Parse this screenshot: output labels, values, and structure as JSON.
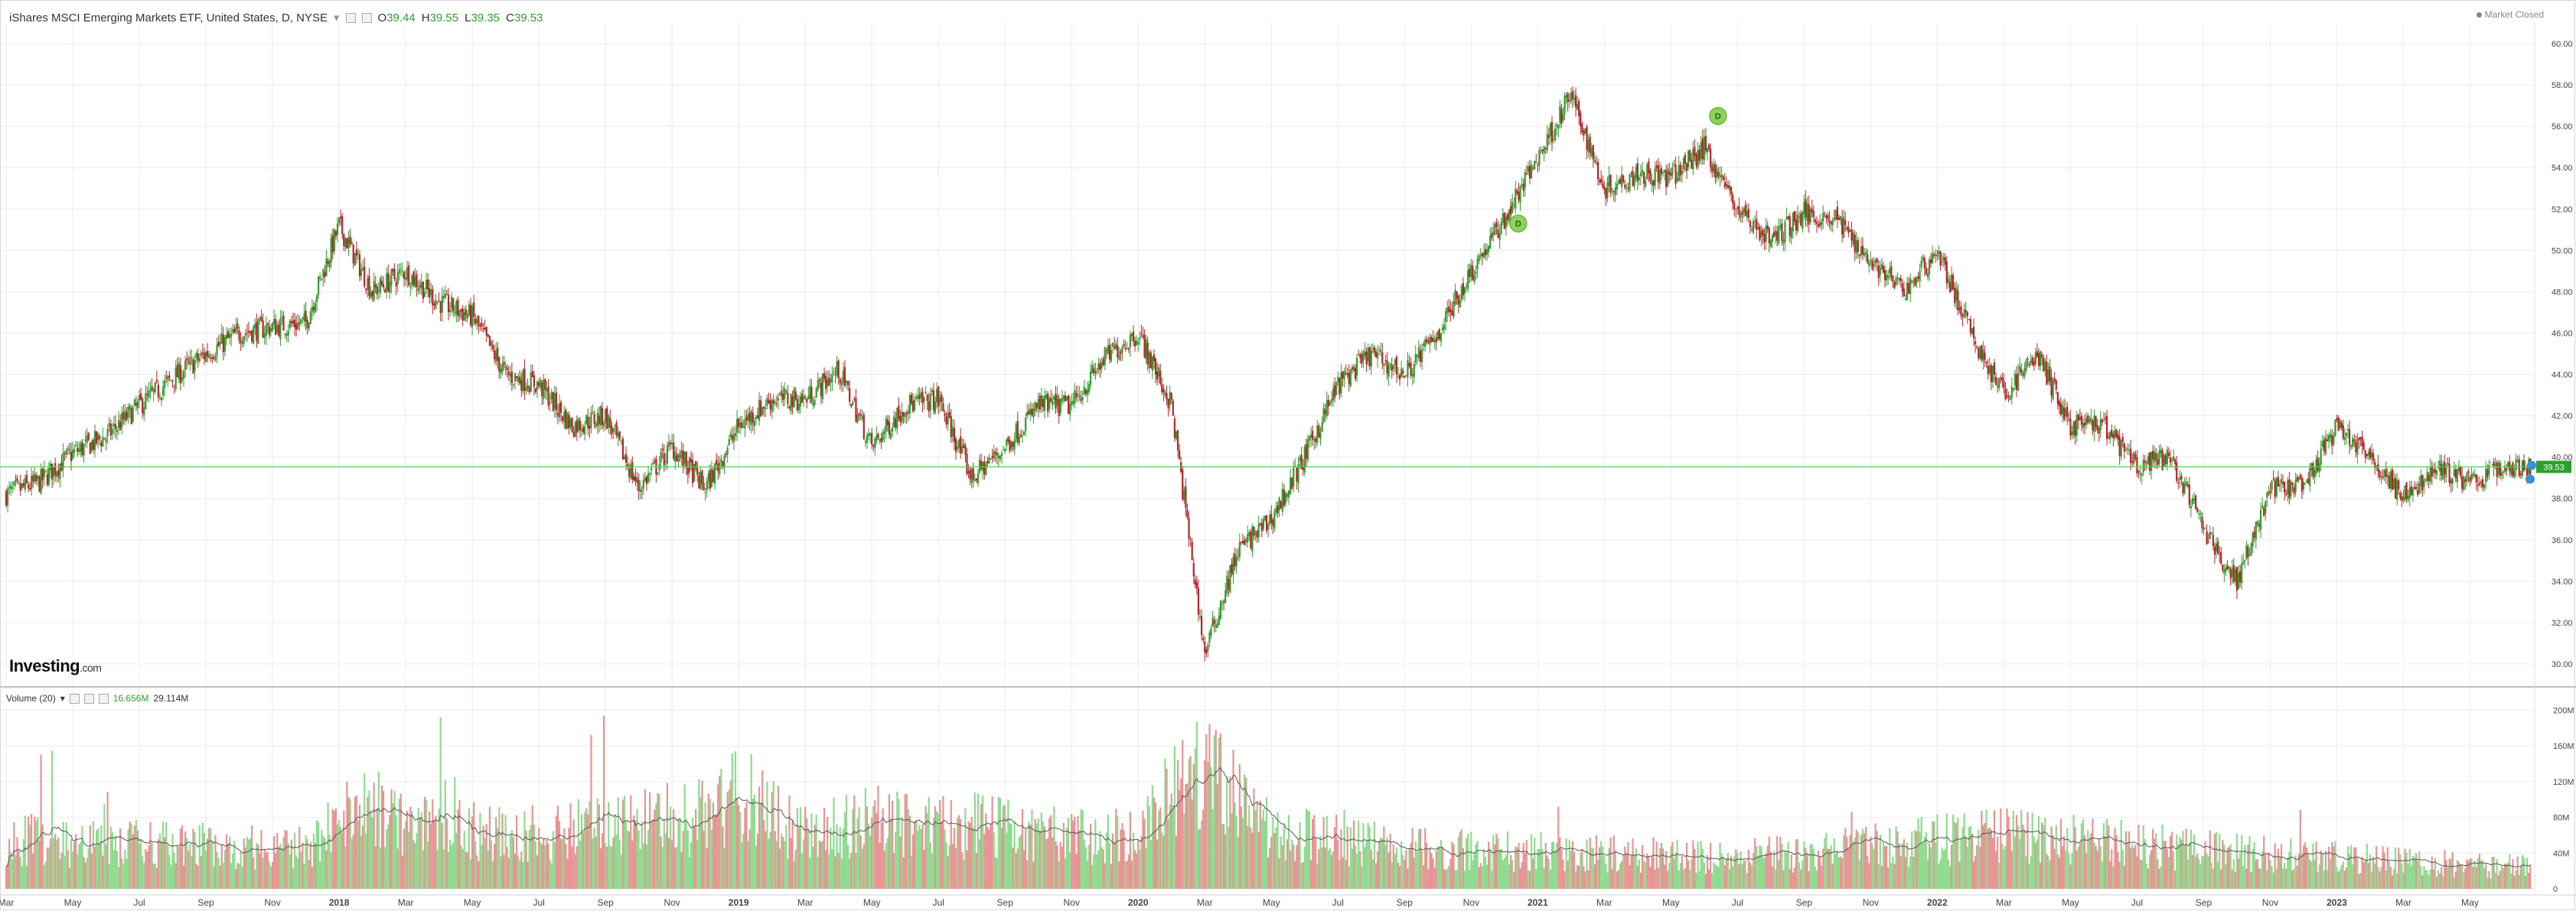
{
  "header": {
    "title": "iShares MSCI Emerging Markets ETF, United States, D, NYSE",
    "dropdown": "▾",
    "open_label": "O",
    "open": "39.44",
    "high_label": "H",
    "high": "39.55",
    "low_label": "L",
    "low": "39.35",
    "close_label": "C",
    "close": "39.53"
  },
  "status": {
    "market_closed": "Market Closed"
  },
  "logo": {
    "main": "Investing",
    "suffix": ".com"
  },
  "volume_header": {
    "label": "Volume (20)",
    "dropdown": "▾",
    "value": "16.656M",
    "ma_value": "29.114M"
  },
  "colors": {
    "up": "#2e9e2e",
    "down": "#b5242a",
    "vol_up": "#8fdb8f",
    "vol_down": "#e89494",
    "price_line": "#48d848",
    "price_tag": "#2e9e2e",
    "grid": "#ececec",
    "marker": "#8bd45a"
  },
  "chart_data": [
    {
      "type": "candlestick",
      "title": "iShares MSCI Emerging Markets ETF, United States, D, NYSE",
      "ylim": [
        29,
        61
      ],
      "y_ticks": [
        "30.00",
        "32.00",
        "34.00",
        "36.00",
        "38.00",
        "40.00",
        "42.00",
        "44.00",
        "46.00",
        "48.00",
        "50.00",
        "52.00",
        "54.00",
        "56.00",
        "58.00",
        "60.00"
      ],
      "x_ticks": [
        "Mar",
        "May",
        "Jul",
        "Sep",
        "Nov",
        "2018",
        "Mar",
        "May",
        "Jul",
        "Sep",
        "Nov",
        "2019",
        "Mar",
        "May",
        "Jul",
        "Sep",
        "Nov",
        "2020",
        "Mar",
        "May",
        "Jul",
        "Sep",
        "Nov",
        "2021",
        "Mar",
        "May",
        "Jul",
        "Sep",
        "Nov",
        "2022",
        "Mar",
        "May",
        "Jul",
        "Sep",
        "Nov",
        "2023",
        "Mar",
        "May"
      ],
      "x_range": [
        "2017-03",
        "2023-06"
      ],
      "grid": true,
      "current_price": 39.53,
      "current_price_label": "39.53",
      "dividend_markers": [
        {
          "date": "2020-12",
          "price": 51.3,
          "label": "D"
        },
        {
          "date": "2021-06",
          "price": 56.5,
          "label": "D"
        }
      ],
      "close_path": [
        {
          "date": "2017-03",
          "close": 38.2
        },
        {
          "date": "2017-04",
          "close": 38.8
        },
        {
          "date": "2017-05",
          "close": 40.2
        },
        {
          "date": "2017-06",
          "close": 41.0
        },
        {
          "date": "2017-07",
          "close": 42.5
        },
        {
          "date": "2017-08",
          "close": 43.8
        },
        {
          "date": "2017-09",
          "close": 45.0
        },
        {
          "date": "2017-10",
          "close": 46.0
        },
        {
          "date": "2017-11",
          "close": 46.3
        },
        {
          "date": "2017-12",
          "close": 46.5
        },
        {
          "date": "2018-01",
          "close": 51.2
        },
        {
          "date": "2018-02",
          "close": 48.0
        },
        {
          "date": "2018-03",
          "close": 49.0
        },
        {
          "date": "2018-04",
          "close": 47.5
        },
        {
          "date": "2018-05",
          "close": 46.8
        },
        {
          "date": "2018-06",
          "close": 44.0
        },
        {
          "date": "2018-07",
          "close": 43.5
        },
        {
          "date": "2018-08",
          "close": 41.5
        },
        {
          "date": "2018-09",
          "close": 42.0
        },
        {
          "date": "2018-10",
          "close": 38.5
        },
        {
          "date": "2018-11",
          "close": 40.5
        },
        {
          "date": "2018-12",
          "close": 38.5
        },
        {
          "date": "2019-01",
          "close": 41.5
        },
        {
          "date": "2019-02",
          "close": 42.8
        },
        {
          "date": "2019-03",
          "close": 42.8
        },
        {
          "date": "2019-04",
          "close": 44.2
        },
        {
          "date": "2019-05",
          "close": 40.5
        },
        {
          "date": "2019-06",
          "close": 42.5
        },
        {
          "date": "2019-07",
          "close": 42.8
        },
        {
          "date": "2019-08",
          "close": 39.0
        },
        {
          "date": "2019-09",
          "close": 40.5
        },
        {
          "date": "2019-10",
          "close": 42.5
        },
        {
          "date": "2019-11",
          "close": 42.5
        },
        {
          "date": "2019-12",
          "close": 44.8
        },
        {
          "date": "2020-01",
          "close": 46.0
        },
        {
          "date": "2020-02",
          "close": 42.5
        },
        {
          "date": "2020-03",
          "close": 30.5
        },
        {
          "date": "2020-04",
          "close": 35.5
        },
        {
          "date": "2020-05",
          "close": 37.0
        },
        {
          "date": "2020-06",
          "close": 40.0
        },
        {
          "date": "2020-07",
          "close": 43.5
        },
        {
          "date": "2020-08",
          "close": 45.0
        },
        {
          "date": "2020-09",
          "close": 44.0
        },
        {
          "date": "2020-10",
          "close": 46.0
        },
        {
          "date": "2020-11",
          "close": 49.0
        },
        {
          "date": "2020-12",
          "close": 51.5
        },
        {
          "date": "2021-01",
          "close": 54.5
        },
        {
          "date": "2021-02",
          "close": 57.5
        },
        {
          "date": "2021-03",
          "close": 53.0
        },
        {
          "date": "2021-04",
          "close": 53.8
        },
        {
          "date": "2021-05",
          "close": 53.5
        },
        {
          "date": "2021-06",
          "close": 55.0
        },
        {
          "date": "2021-07",
          "close": 52.0
        },
        {
          "date": "2021-08",
          "close": 50.5
        },
        {
          "date": "2021-09",
          "close": 51.8
        },
        {
          "date": "2021-10",
          "close": 51.5
        },
        {
          "date": "2021-11",
          "close": 49.5
        },
        {
          "date": "2021-12",
          "close": 48.0
        },
        {
          "date": "2022-01",
          "close": 50.0
        },
        {
          "date": "2022-02",
          "close": 46.0
        },
        {
          "date": "2022-03",
          "close": 43.0
        },
        {
          "date": "2022-04",
          "close": 45.0
        },
        {
          "date": "2022-05",
          "close": 41.5
        },
        {
          "date": "2022-06",
          "close": 41.5
        },
        {
          "date": "2022-07",
          "close": 39.5
        },
        {
          "date": "2022-08",
          "close": 40.0
        },
        {
          "date": "2022-09",
          "close": 36.5
        },
        {
          "date": "2022-10",
          "close": 34.0
        },
        {
          "date": "2022-11",
          "close": 38.5
        },
        {
          "date": "2022-12",
          "close": 38.5
        },
        {
          "date": "2023-01",
          "close": 41.5
        },
        {
          "date": "2023-02",
          "close": 40.0
        },
        {
          "date": "2023-03",
          "close": 38.0
        },
        {
          "date": "2023-04",
          "close": 39.5
        },
        {
          "date": "2023-05",
          "close": 38.8
        },
        {
          "date": "2023-06",
          "close": 39.53
        }
      ]
    },
    {
      "type": "bar",
      "title": "Volume (20)",
      "ylim": [
        0,
        220
      ],
      "y_unit": "M",
      "y_ticks": [
        "0",
        "40M",
        "80M",
        "120M",
        "160M",
        "200M"
      ],
      "ma_period": 20,
      "volume_profile": [
        {
          "date": "2017-03",
          "avg_volume_m": 55
        },
        {
          "date": "2017-07",
          "avg_volume_m": 50
        },
        {
          "date": "2017-12",
          "avg_volume_m": 45
        },
        {
          "date": "2018-02",
          "avg_volume_m": 100
        },
        {
          "date": "2018-03",
          "avg_volume_m": 70
        },
        {
          "date": "2018-07",
          "avg_volume_m": 60
        },
        {
          "date": "2018-10",
          "avg_volume_m": 75
        },
        {
          "date": "2018-12",
          "avg_volume_m": 80
        },
        {
          "date": "2019-01",
          "avg_volume_m": 110
        },
        {
          "date": "2019-03",
          "avg_volume_m": 60
        },
        {
          "date": "2019-05",
          "avg_volume_m": 75
        },
        {
          "date": "2019-08",
          "avg_volume_m": 70
        },
        {
          "date": "2019-12",
          "avg_volume_m": 55
        },
        {
          "date": "2020-01",
          "avg_volume_m": 70
        },
        {
          "date": "2020-03",
          "avg_volume_m": 130
        },
        {
          "date": "2020-05",
          "avg_volume_m": 65
        },
        {
          "date": "2020-09",
          "avg_volume_m": 45
        },
        {
          "date": "2021-02",
          "avg_volume_m": 40
        },
        {
          "date": "2021-07",
          "avg_volume_m": 35
        },
        {
          "date": "2022-03",
          "avg_volume_m": 60
        },
        {
          "date": "2022-10",
          "avg_volume_m": 40
        },
        {
          "date": "2023-01",
          "avg_volume_m": 35
        },
        {
          "date": "2023-06",
          "avg_volume_m": 25
        }
      ]
    }
  ]
}
